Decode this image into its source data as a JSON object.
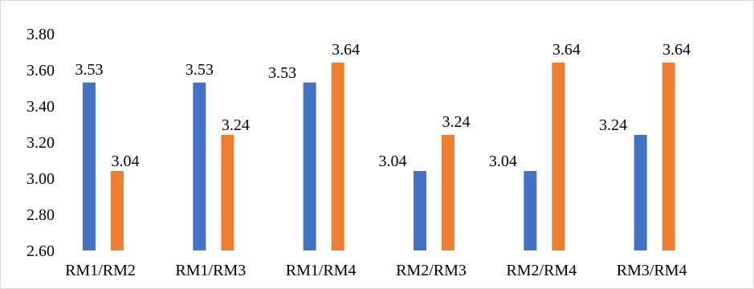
{
  "chart_data": {
    "type": "bar",
    "categories": [
      "RM1/RM2",
      "RM1/RM3",
      "RM1/RM4",
      "RM2/RM3",
      "RM2/RM4",
      "RM3/RM4"
    ],
    "series": [
      {
        "values": [
          3.53,
          3.53,
          3.53,
          3.04,
          3.04,
          3.24
        ],
        "color": "#4472c4"
      },
      {
        "values": [
          3.04,
          3.24,
          3.64,
          3.24,
          3.64,
          3.64
        ],
        "color": "#ed7d31"
      }
    ],
    "data_labels": [
      [
        "3.53",
        "3.53",
        "3.53",
        "3.04",
        "3.04",
        "3.24"
      ],
      [
        "3.04",
        "3.24",
        "3.64",
        "3.24",
        "3.64",
        "3.64"
      ]
    ],
    "ylim": [
      2.6,
      3.8
    ],
    "yticks": [
      "2.60",
      "2.80",
      "3.00",
      "3.20",
      "3.40",
      "3.60",
      "3.80"
    ],
    "title": "",
    "xlabel": "",
    "ylabel": "",
    "grid": false,
    "legend": "none"
  }
}
